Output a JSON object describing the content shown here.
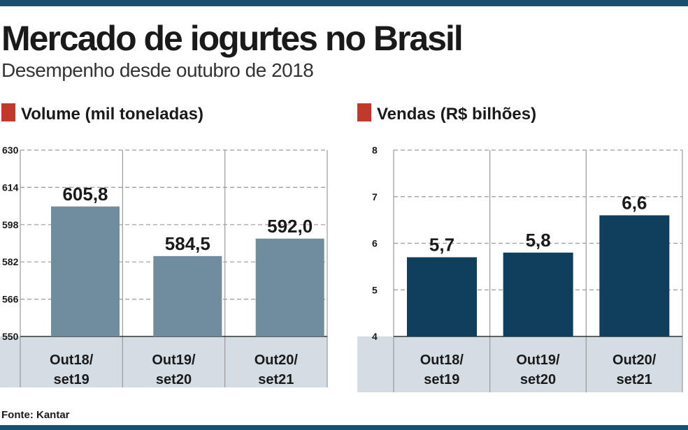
{
  "header": {
    "title": "Mercado de iogurtes no Brasil",
    "subtitle": "Desempenho desde outubro de 2018"
  },
  "footer": {
    "source": "Fonte: Kantar"
  },
  "colors": {
    "brand_bar": "#1a4f6e",
    "marker": "#c0392b",
    "volume_bar": "#6f8d9c",
    "sales_bar": "#0f3f5c",
    "category_band": "#d5dde4",
    "grid": "#9a9a9a"
  },
  "chart_data": [
    {
      "type": "bar",
      "title": "Volume (mil toneladas)",
      "categories": [
        [
          "Out18/",
          "set19"
        ],
        [
          "Out19/",
          "set20"
        ],
        [
          "Out20/",
          "set21"
        ]
      ],
      "values": [
        605.8,
        584.5,
        592.0
      ],
      "value_labels": [
        "605,8",
        "584,5",
        "592,0"
      ],
      "yticks": [
        630,
        614,
        598,
        582,
        566,
        550
      ],
      "ylim": [
        550,
        630
      ],
      "xlabel": "",
      "ylabel": "",
      "grid": true
    },
    {
      "type": "bar",
      "title": "Vendas (R$ bilhões)",
      "categories": [
        [
          "Out18/",
          "set19"
        ],
        [
          "Out19/",
          "set20"
        ],
        [
          "Out20/",
          "set21"
        ]
      ],
      "values": [
        5.7,
        5.8,
        6.6
      ],
      "value_labels": [
        "5,7",
        "5,8",
        "6,6"
      ],
      "yticks": [
        8,
        7,
        6,
        5,
        4
      ],
      "ylim": [
        4,
        8
      ],
      "xlabel": "",
      "ylabel": "",
      "grid": true
    }
  ]
}
